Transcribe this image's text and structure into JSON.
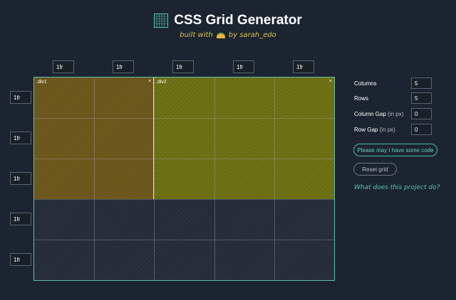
{
  "header": {
    "title": "CSS Grid Generator",
    "subtitle_prefix": "built with",
    "subtitle_suffix": "by sarah_edo"
  },
  "columns": [
    {
      "value": "1fr"
    },
    {
      "value": "1fr"
    },
    {
      "value": "1fr"
    },
    {
      "value": "1fr"
    },
    {
      "value": "1fr"
    }
  ],
  "rows": [
    {
      "value": "1fr"
    },
    {
      "value": "1fr"
    },
    {
      "value": "1fr"
    },
    {
      "value": "1fr"
    },
    {
      "value": "1fr"
    }
  ],
  "grid_areas": [
    {
      "label": ".div1",
      "close": "×"
    },
    {
      "label": ".div2",
      "close": "×"
    }
  ],
  "controls": {
    "columns_label": "Columns",
    "columns_value": "5",
    "rows_label": "Rows",
    "rows_value": "5",
    "column_gap_label": "Column Gap",
    "column_gap_unit": "(in px)",
    "column_gap_value": "0",
    "row_gap_label": "Row Gap",
    "row_gap_unit": "(in px)",
    "row_gap_value": "0"
  },
  "buttons": {
    "code_label": "Please may I have some code",
    "reset_label": "Reset grid"
  },
  "about_link": "What does this project do?",
  "colors": {
    "background": "#1d2431",
    "accent": "#3fc0a6",
    "div1": "#6f5a1e",
    "div2": "#707315",
    "subtitle": "#d9c04a"
  }
}
